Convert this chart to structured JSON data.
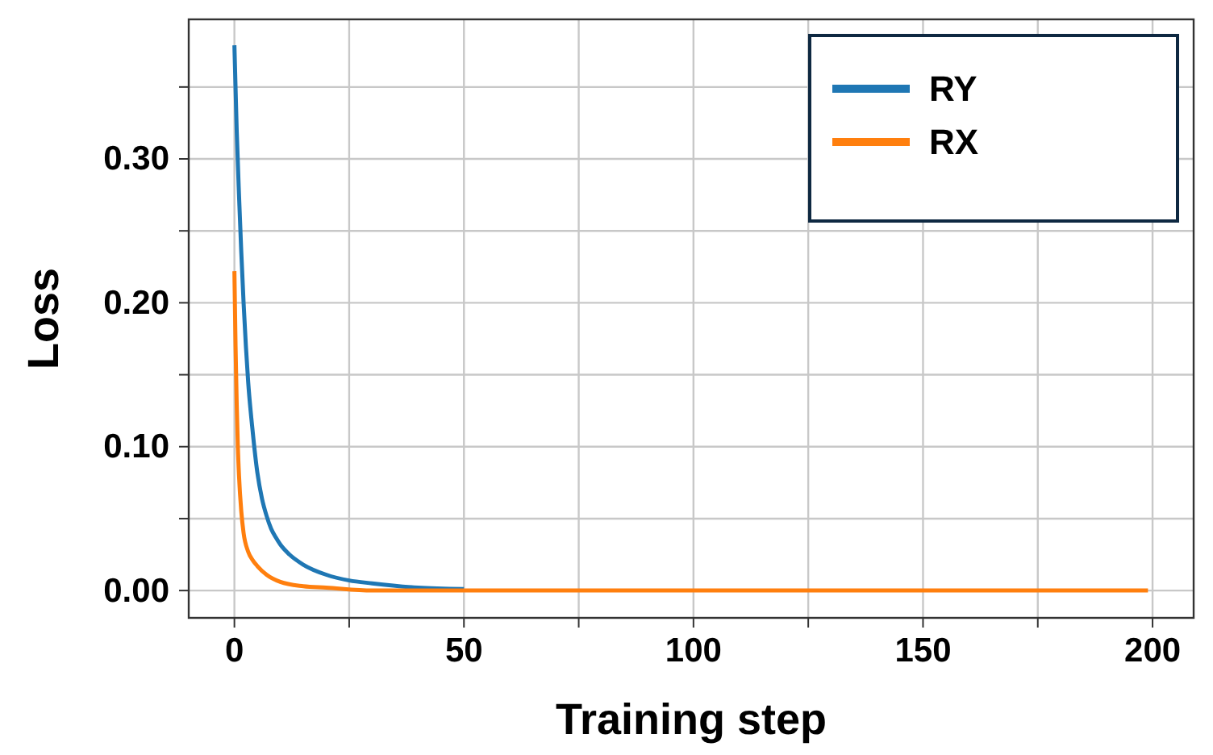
{
  "chart_data": {
    "type": "line",
    "xlabel": "Training step",
    "ylabel": "Loss",
    "xlim": [
      -9.95,
      208.95
    ],
    "ylim": [
      -0.019,
      0.397
    ],
    "xticks": [
      0,
      {
        "value": 25,
        "label": null
      },
      50,
      {
        "value": 75,
        "label": null
      },
      100,
      {
        "value": 125,
        "label": null
      },
      150,
      {
        "value": 175,
        "label": null
      },
      200
    ],
    "yticks": [
      {
        "value": 0,
        "label": "0.00"
      },
      {
        "value": 0.05,
        "label": null
      },
      {
        "value": 0.1,
        "label": "0.10"
      },
      {
        "value": 0.15,
        "label": null
      },
      {
        "value": 0.2,
        "label": "0.20"
      },
      {
        "value": 0.25,
        "label": null
      },
      {
        "value": 0.3,
        "label": "0.30"
      },
      {
        "value": 0.35,
        "label": null
      }
    ],
    "grid": true,
    "legend": "top right",
    "marker": "none",
    "line_style": "solid",
    "series": [
      {
        "name": "RY",
        "color": "#1f77b4",
        "x": [
          0,
          0.5,
          1,
          1.5,
          2,
          2.5,
          3,
          4,
          5,
          6,
          7,
          8,
          9,
          10,
          12,
          15,
          20,
          25,
          30,
          40,
          50
        ],
        "values": [
          0.379,
          0.32,
          0.275,
          0.235,
          0.2,
          0.17,
          0.145,
          0.11,
          0.082,
          0.064,
          0.052,
          0.043,
          0.037,
          0.032,
          0.025,
          0.018,
          0.011,
          0.007,
          0.005,
          0.002,
          0.001
        ]
      },
      {
        "name": "RX",
        "color": "#ff7f0e",
        "x": [
          0,
          0.25,
          0.5,
          0.75,
          1,
          1.5,
          2,
          3,
          4,
          5,
          7,
          10,
          15,
          20,
          30,
          50,
          100,
          150,
          199
        ],
        "values": [
          0.222,
          0.17,
          0.13,
          0.1,
          0.08,
          0.055,
          0.04,
          0.027,
          0.021,
          0.017,
          0.011,
          0.006,
          0.003,
          0.002,
          0,
          0,
          0,
          0,
          0
        ]
      }
    ]
  }
}
